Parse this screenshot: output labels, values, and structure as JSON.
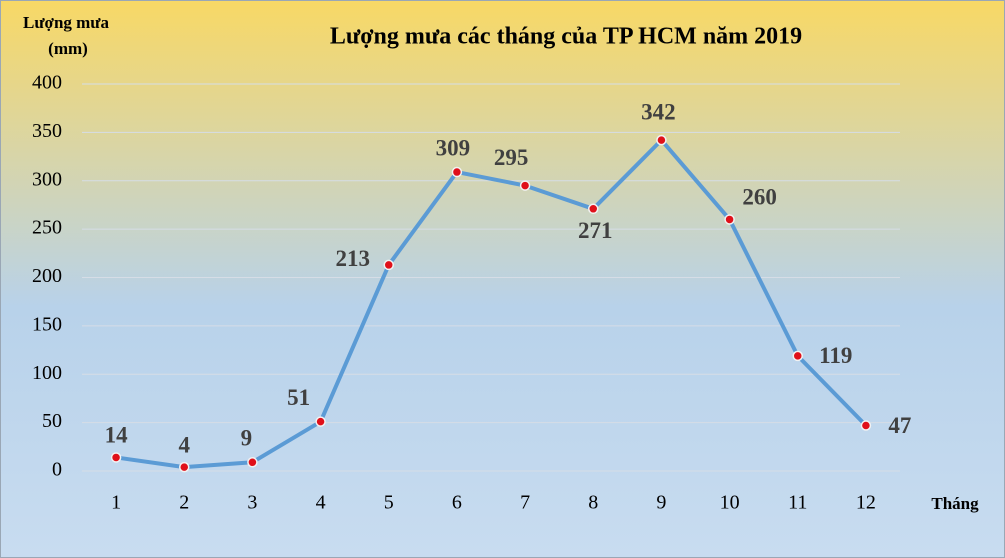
{
  "chart_data": {
    "type": "line",
    "title": "Lượng mưa các tháng của TP HCM năm 2019",
    "y_label": [
      "Lượng mưa",
      "(mm)"
    ],
    "x_label": "Tháng",
    "categories": [
      "1",
      "2",
      "3",
      "4",
      "5",
      "6",
      "7",
      "8",
      "9",
      "10",
      "11",
      "12"
    ],
    "series": [
      {
        "name": "Lượng mưa",
        "color": "#5b9bd5",
        "marker_color": "#e0101a",
        "values": [
          14,
          4,
          9,
          51,
          213,
          309,
          295,
          271,
          342,
          260,
          119,
          47
        ]
      }
    ],
    "ylim": [
      0,
      400
    ],
    "yticks": [
      0,
      50,
      100,
      150,
      200,
      250,
      300,
      350,
      400
    ],
    "grid": true
  }
}
